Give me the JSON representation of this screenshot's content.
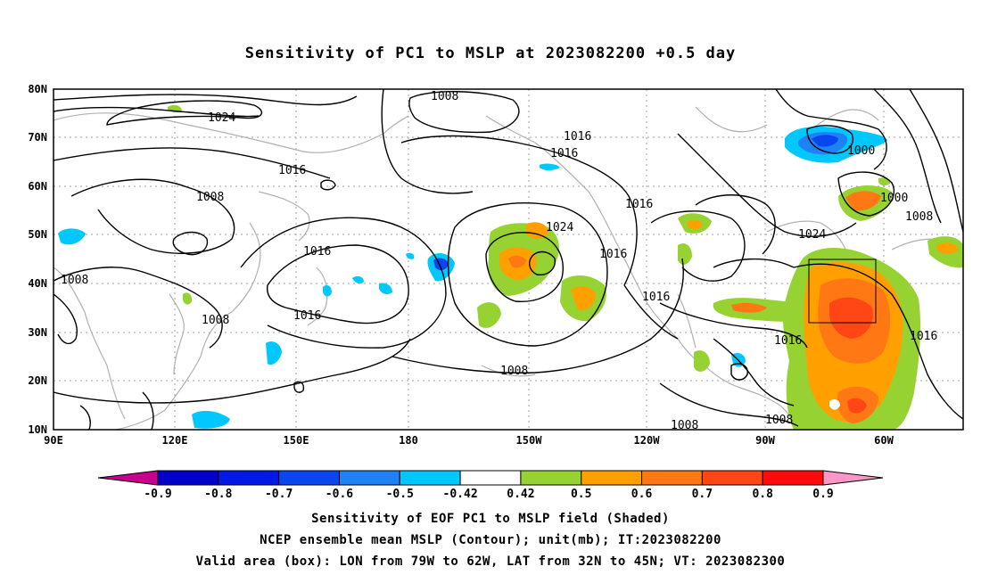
{
  "title": "Sensitivity of PC1 to MSLP at 2023082200 +0.5 day",
  "lat_labels": [
    "80N",
    "70N",
    "60N",
    "50N",
    "40N",
    "30N",
    "20N",
    "10N"
  ],
  "lon_labels": [
    "90E",
    "120E",
    "150E",
    "180",
    "150W",
    "120W",
    "90W",
    "60W"
  ],
  "contour_labels": [
    {
      "text": "1008"
    },
    {
      "text": "1024"
    },
    {
      "text": "1016"
    },
    {
      "text": "1016"
    },
    {
      "text": "1016"
    },
    {
      "text": "1008"
    },
    {
      "text": "1016"
    },
    {
      "text": "1024"
    },
    {
      "text": "1016"
    },
    {
      "text": "1000"
    },
    {
      "text": "1000"
    },
    {
      "text": "1008"
    },
    {
      "text": "1024"
    },
    {
      "text": "1016"
    },
    {
      "text": "1008"
    },
    {
      "text": "1016"
    },
    {
      "text": "1008"
    },
    {
      "text": "1016"
    },
    {
      "text": "1016"
    },
    {
      "text": "1016"
    },
    {
      "text": "1008"
    },
    {
      "text": "1008"
    }
  ],
  "colorbar": {
    "colors": [
      "#c8008c",
      "#0000c8",
      "#0019e6",
      "#0a46f0",
      "#1e82f5",
      "#00c8ff",
      "#ffffff",
      "#96d232",
      "#ffa000",
      "#ff7814",
      "#ff4614",
      "#ff0a0a",
      "#ff96c8"
    ],
    "labels": [
      "-0.9",
      "-0.8",
      "-0.7",
      "-0.6",
      "-0.5",
      "-0.42",
      "0.42",
      "0.5",
      "0.6",
      "0.7",
      "0.8",
      "0.9"
    ]
  },
  "valid_box": {
    "lon_w": "79W",
    "lon_e": "62W",
    "lat_s": "32N",
    "lat_n": "45N"
  },
  "footer": {
    "line1": "Sensitivity of EOF PC1 to MSLP field (Shaded)",
    "line2": "NCEP ensemble mean MSLP (Contour); unit(mb); IT:2023082200",
    "line3": "Valid area (box): LON from 79W to 62W, LAT from 32N to 45N; VT: 2023082300"
  }
}
